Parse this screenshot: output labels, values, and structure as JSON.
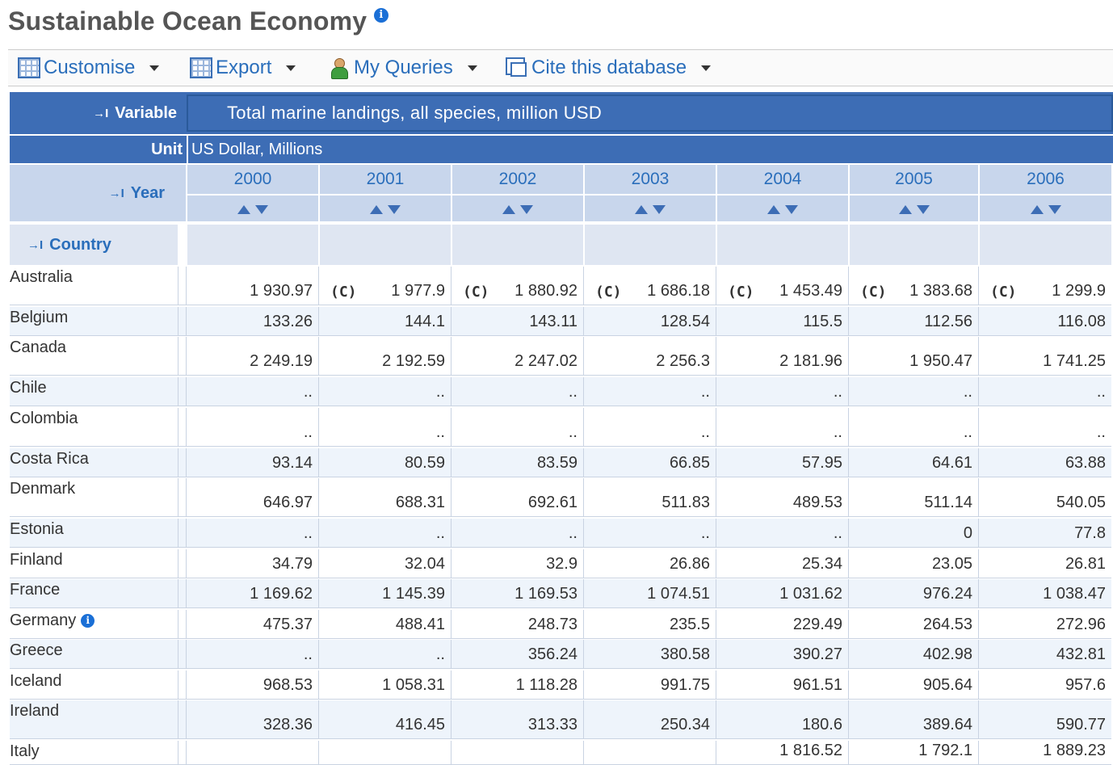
{
  "page": {
    "title": "Sustainable Ocean Economy"
  },
  "toolbar": {
    "customise": "Customise",
    "export": "Export",
    "my_queries": "My Queries",
    "cite": "Cite this database"
  },
  "header": {
    "variable_label": "Variable",
    "variable_value": "Total marine landings, all species, million USD",
    "unit_label": "Unit",
    "unit_value": "US Dollar, Millions",
    "year_label": "Year",
    "country_label": "Country",
    "years": [
      "2000",
      "2001",
      "2002",
      "2003",
      "2004",
      "2005",
      "2006"
    ]
  },
  "rows": [
    {
      "country": "Australia",
      "values": [
        "1 930.97",
        "1 977.9",
        "1 880.92",
        "1 686.18",
        "1 453.49",
        "1 383.68",
        "1 299.9"
      ],
      "flags": [
        "",
        "(C)",
        "(C)",
        "(C)",
        "(C)",
        "(C)",
        "(C)"
      ]
    },
    {
      "country": "Belgium",
      "values": [
        "133.26",
        "144.1",
        "143.11",
        "128.54",
        "115.5",
        "112.56",
        "116.08"
      ]
    },
    {
      "country": "Canada",
      "values": [
        "2 249.19",
        "2 192.59",
        "2 247.02",
        "2 256.3",
        "2 181.96",
        "1 950.47",
        "1 741.25"
      ]
    },
    {
      "country": "Chile",
      "values": [
        "..",
        "..",
        "..",
        "..",
        "..",
        "..",
        ".."
      ]
    },
    {
      "country": "Colombia",
      "values": [
        "..",
        "..",
        "..",
        "..",
        "..",
        "..",
        ".."
      ]
    },
    {
      "country": "Costa Rica",
      "values": [
        "93.14",
        "80.59",
        "83.59",
        "66.85",
        "57.95",
        "64.61",
        "63.88"
      ]
    },
    {
      "country": "Denmark",
      "values": [
        "646.97",
        "688.31",
        "692.61",
        "511.83",
        "489.53",
        "511.14",
        "540.05"
      ]
    },
    {
      "country": "Estonia",
      "values": [
        "..",
        "..",
        "..",
        "..",
        "..",
        "0",
        "77.8"
      ]
    },
    {
      "country": "Finland",
      "values": [
        "34.79",
        "32.04",
        "32.9",
        "26.86",
        "25.34",
        "23.05",
        "26.81"
      ]
    },
    {
      "country": "France",
      "values": [
        "1 169.62",
        "1 145.39",
        "1 169.53",
        "1 074.51",
        "1 031.62",
        "976.24",
        "1 038.47"
      ]
    },
    {
      "country": "Germany",
      "values": [
        "475.37",
        "488.41",
        "248.73",
        "235.5",
        "229.49",
        "264.53",
        "272.96"
      ],
      "info": true
    },
    {
      "country": "Greece",
      "values": [
        "..",
        "..",
        "356.24",
        "380.58",
        "390.27",
        "402.98",
        "432.81"
      ]
    },
    {
      "country": "Iceland",
      "values": [
        "968.53",
        "1 058.31",
        "1 118.28",
        "991.75",
        "961.51",
        "905.64",
        "957.6"
      ]
    },
    {
      "country": "Ireland",
      "values": [
        "328.36",
        "416.45",
        "313.33",
        "250.34",
        "180.6",
        "389.64",
        "590.77"
      ]
    },
    {
      "country": "Italy",
      "values": [
        "",
        "",
        "",
        "",
        "1 816.52",
        "1 792.1",
        "1 889.23"
      ]
    }
  ]
}
